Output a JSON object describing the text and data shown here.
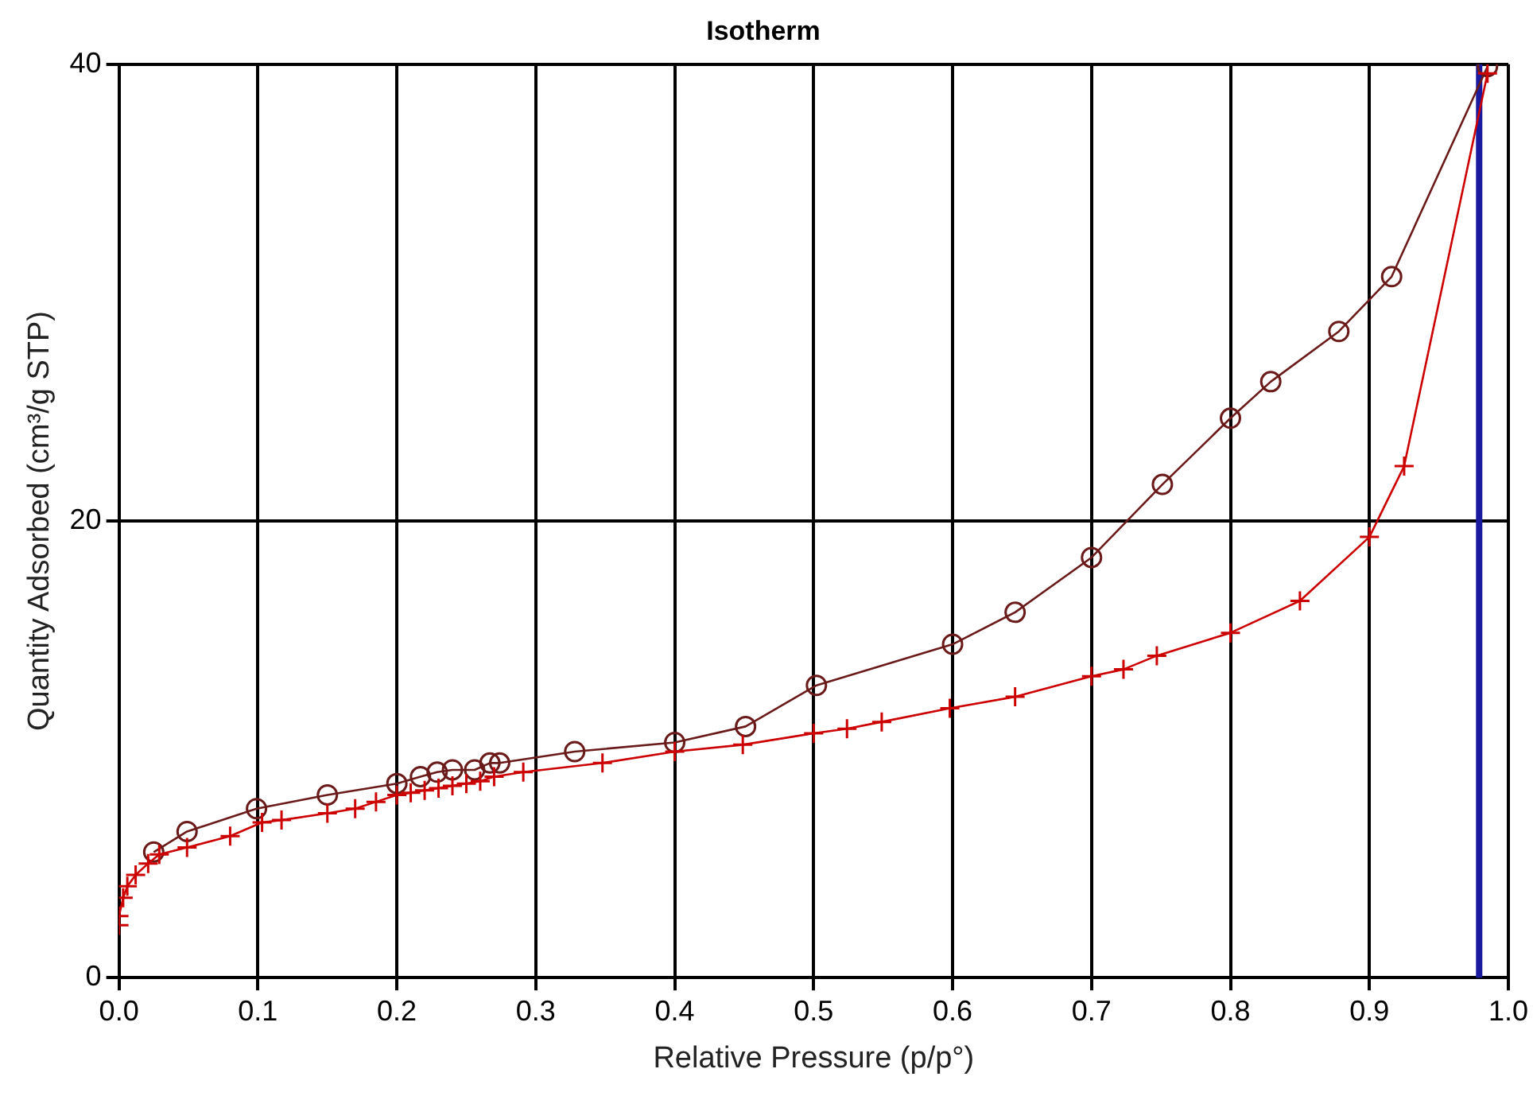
{
  "chart_data": {
    "type": "line",
    "title": "Isotherm",
    "xlabel": "Relative Pressure (p/p°)",
    "ylabel": "Quantity Adsorbed (cm³/g STP)",
    "xlim": [
      0,
      1
    ],
    "xticks": [
      {
        "value": 0,
        "label": "0.0"
      },
      0.1,
      0.2,
      0.3,
      0.4,
      0.5,
      0.6,
      0.7,
      0.8,
      0.9,
      {
        "value": 1,
        "label": "1.0"
      }
    ],
    "ylim": [
      0,
      40
    ],
    "yticks": [
      0,
      20,
      40
    ],
    "grid": true,
    "legend": false,
    "series": [
      {
        "color": "#cc0000",
        "marker": "cross",
        "x": [
          0,
          0,
          0.003,
          0.006,
          0.012,
          0.021,
          0.029,
          0.049,
          0.08,
          0.103,
          0.117,
          0.15,
          0.17,
          0.185,
          0.2,
          0.21,
          0.22,
          0.23,
          0.24,
          0.25,
          0.26,
          0.27,
          0.291,
          0.348,
          0.4,
          0.449,
          0.5,
          0.524,
          0.549,
          0.598,
          0.645,
          0.7,
          0.723,
          0.747,
          0.8,
          0.85,
          0.9,
          0.925,
          0.985
        ],
        "values": [
          2.3,
          2.7,
          3.5,
          4.0,
          4.5,
          5.0,
          5.4,
          5.7,
          6.2,
          6.8,
          6.9,
          7.2,
          7.4,
          7.7,
          8.0,
          8.1,
          8.2,
          8.3,
          8.4,
          8.5,
          8.6,
          8.8,
          9.0,
          9.4,
          9.9,
          10.2,
          10.7,
          10.9,
          11.2,
          11.8,
          12.3,
          13.2,
          13.5,
          14.1,
          15.1,
          16.5,
          19.3,
          22.4,
          39.6
        ]
      },
      {
        "color": "#6b1a1a",
        "marker": "circle",
        "x": [
          0.985,
          0.916,
          0.878,
          0.829,
          0.8,
          0.751,
          0.7,
          0.645,
          0.6,
          0.502,
          0.451,
          0.4,
          0.328,
          0.274,
          0.267,
          0.256,
          0.24,
          0.229,
          0.217,
          0.2,
          0.15,
          0.099,
          0.049,
          0.025
        ],
        "values": [
          39.9,
          30.7,
          28.3,
          26.1,
          24.5,
          21.6,
          18.4,
          16.0,
          14.6,
          12.8,
          11.0,
          10.3,
          9.9,
          9.4,
          9.4,
          9.1,
          9.1,
          9.0,
          8.8,
          8.5,
          8.0,
          7.4,
          6.4,
          5.5
        ]
      }
    ],
    "ref_lines": [
      {
        "axis": "x",
        "value": 0.979,
        "color": "#1a1aa0"
      }
    ]
  }
}
